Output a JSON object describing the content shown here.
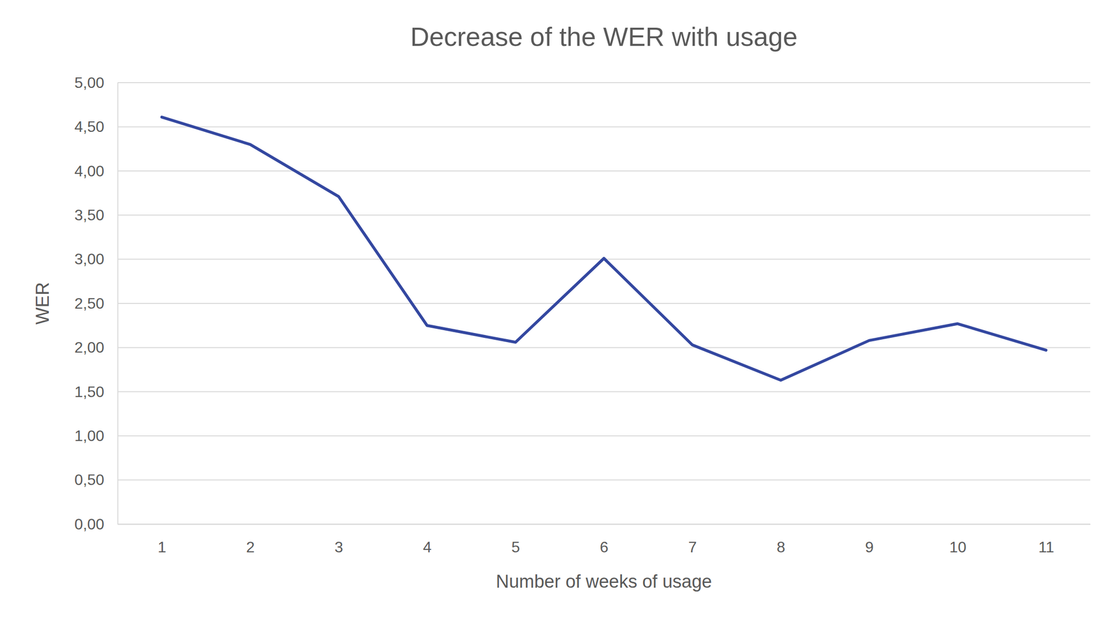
{
  "chart_data": {
    "type": "line",
    "title": "Decrease of the WER with usage",
    "x_label": "Number of weeks of usage",
    "y_label": "WER",
    "categories": [
      "1",
      "2",
      "3",
      "4",
      "5",
      "6",
      "7",
      "8",
      "9",
      "10",
      "11"
    ],
    "values": [
      4.61,
      4.3,
      3.71,
      2.25,
      2.06,
      3.01,
      2.03,
      1.63,
      2.08,
      2.27,
      1.97
    ],
    "color": "#3347a0",
    "ylim": [
      0,
      5
    ],
    "yticks": [
      {
        "value": 0,
        "label": "0,00"
      },
      {
        "value": 0.5,
        "label": "0,50"
      },
      {
        "value": 1,
        "label": "1,00"
      },
      {
        "value": 1.5,
        "label": "1,50"
      },
      {
        "value": 2,
        "label": "2,00"
      },
      {
        "value": 2.5,
        "label": "2,50"
      },
      {
        "value": 3,
        "label": "3,00"
      },
      {
        "value": 3.5,
        "label": "3,50"
      },
      {
        "value": 4,
        "label": "4,00"
      },
      {
        "value": 4.5,
        "label": "4,50"
      },
      {
        "value": 5,
        "label": "5,00"
      }
    ],
    "grid": true
  }
}
